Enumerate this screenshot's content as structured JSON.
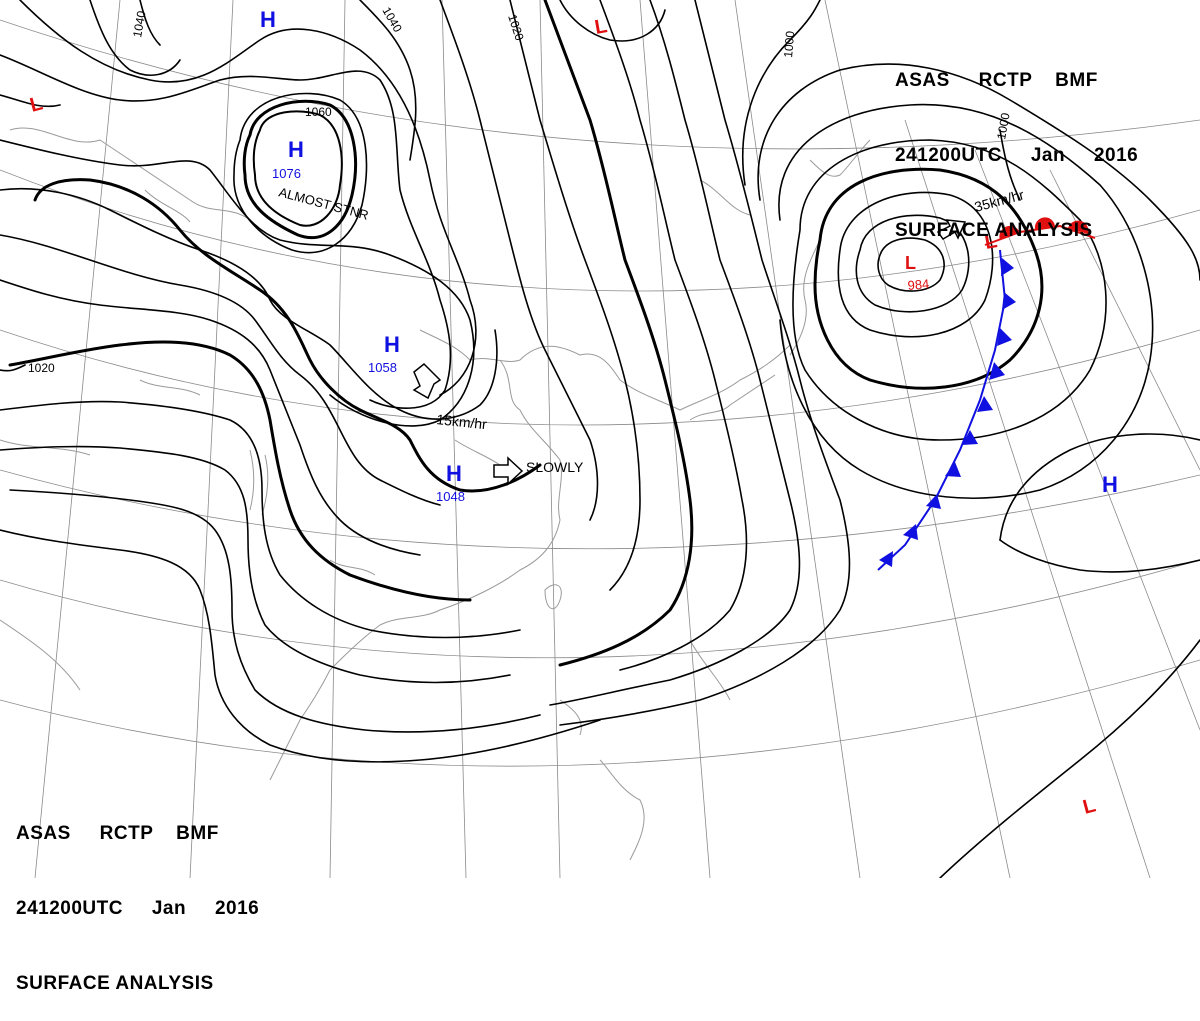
{
  "header": {
    "line1": "ASAS     RCTP    BMF",
    "line2": "241200UTC     Jan     2016",
    "line3": "SURFACE ANALYSIS"
  },
  "high_symbol": "H",
  "low_symbol": "L",
  "isobar_labels": [
    "1040",
    "1040",
    "1020",
    "1000",
    "1000",
    "1060",
    "1020"
  ],
  "pressure_centers": [
    {
      "symbol": "H",
      "value": "1076",
      "note": "ALMOST STNR"
    },
    {
      "symbol": "H",
      "value": "1058"
    },
    {
      "symbol": "H",
      "value": "1048"
    },
    {
      "symbol": "L",
      "value": "984"
    }
  ],
  "motion_labels": [
    "15km/hr",
    "SLOWLY",
    "35km/hr"
  ],
  "colors": {
    "high": "#1010e0",
    "low": "#e01010",
    "isobar": "#000000",
    "coast": "#909090",
    "cold_front": "#1010e0",
    "warm_front": "#e01010"
  }
}
